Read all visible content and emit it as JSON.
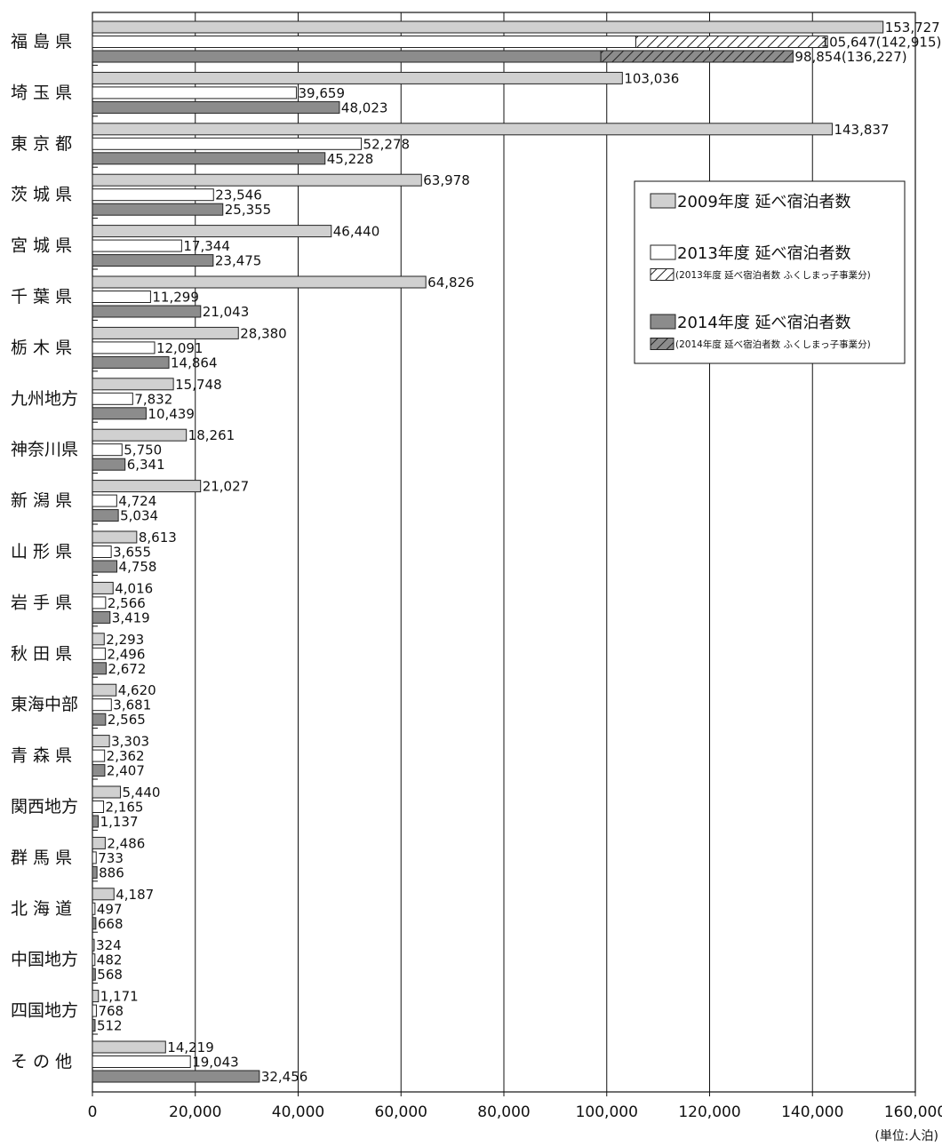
{
  "chart_data": {
    "type": "bar",
    "orientation": "horizontal",
    "categories": [
      "福 島 県",
      "埼 玉 県",
      "東 京 都",
      "茨 城 県",
      "宮 城 県",
      "千 葉 県",
      "栃 木 県",
      "九州地方",
      "神奈川県",
      "新 潟 県",
      "山 形 県",
      "岩 手 県",
      "秋 田 県",
      "東海中部",
      "青 森 県",
      "関西地方",
      "群 馬 県",
      "北 海 道",
      "中国地方",
      "四国地方",
      "そ の 他"
    ],
    "series": [
      {
        "name": "2009年度 延べ宿泊者数",
        "color": "#d0d0d0",
        "values": [
          153727,
          103036,
          143837,
          63978,
          46440,
          64826,
          28380,
          15748,
          18261,
          21027,
          8613,
          4016,
          2293,
          4620,
          3303,
          5440,
          2486,
          4187,
          324,
          1171,
          14219
        ],
        "labels": [
          "153,727",
          "103,036",
          "143,837",
          "63,978",
          "46,440",
          "64,826",
          "28,380",
          "15,748",
          "18,261",
          "21,027",
          "8,613",
          "4,016",
          "2,293",
          "4,620",
          "3,303",
          "5,440",
          "2,486",
          "4,187",
          "324",
          "1,171",
          "14,219"
        ]
      },
      {
        "name": "2013年度 延べ宿泊者数",
        "color": "#ffffff",
        "values": [
          105647,
          39659,
          52278,
          23546,
          17344,
          11299,
          12091,
          7832,
          5750,
          4724,
          3655,
          2566,
          2496,
          3681,
          2362,
          2165,
          733,
          497,
          482,
          768,
          19043
        ],
        "labels": [
          "105,647(142,915)",
          "39,659",
          "52,278",
          "23,546",
          "17,344",
          "11,299",
          "12,091",
          "7,832",
          "5,750",
          "4,724",
          "3,655",
          "2,566",
          "2,496",
          "3,681",
          "2,362",
          "2,165",
          "733",
          "497",
          "482",
          "768",
          "19,043"
        ]
      },
      {
        "name": "2014年度 延べ宿泊者数",
        "color": "#8c8c8c",
        "values": [
          98854,
          48023,
          45228,
          25355,
          23475,
          21043,
          14864,
          10439,
          6341,
          5034,
          4758,
          3419,
          2672,
          2565,
          2407,
          1137,
          886,
          668,
          568,
          512,
          32456
        ],
        "labels": [
          "98,854(136,227)",
          "48,023",
          "45,228",
          "25,355",
          "23,475",
          "21,043",
          "14,864",
          "10,439",
          "6,341",
          "5,034",
          "4,758",
          "3,419",
          "2,672",
          "2,565",
          "2,407",
          "1,137",
          "886",
          "668",
          "568",
          "512",
          "32,456"
        ]
      }
    ],
    "hatched_series": [
      {
        "name": "(2013年度 延べ宿泊者数 ふくしまっ子事業分)",
        "base_series": 1,
        "category_index": 0,
        "total": 142915,
        "color": "#ffffff"
      },
      {
        "name": "(2014年度 延べ宿泊者数 ふくしまっ子事業分)",
        "base_series": 2,
        "category_index": 0,
        "total": 136227,
        "color": "#8c8c8c"
      }
    ],
    "xlim": [
      0,
      160000
    ],
    "xticks": [
      0,
      20000,
      40000,
      60000,
      80000,
      100000,
      120000,
      140000,
      160000
    ],
    "xtick_labels": [
      "0",
      "20,000",
      "40,000",
      "60,000",
      "80,000",
      "100,000",
      "120,000",
      "140,000",
      "160,000"
    ],
    "unit_label": "(単位:人泊)",
    "grid": true,
    "legend_position": "upper-right"
  }
}
